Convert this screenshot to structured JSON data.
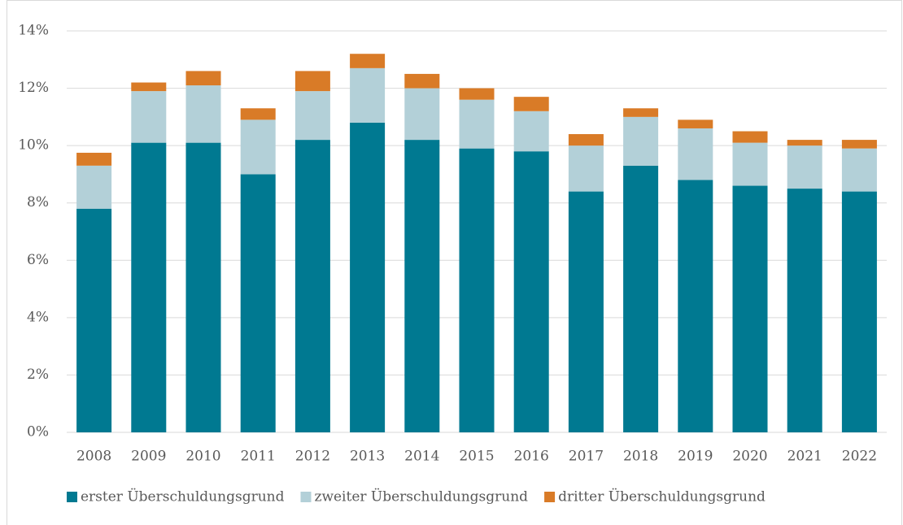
{
  "chart_data": {
    "type": "stacked_bar",
    "categories": [
      "2008",
      "2009",
      "2010",
      "2011",
      "2012",
      "2013",
      "2014",
      "2015",
      "2016",
      "2017",
      "2018",
      "2019",
      "2020",
      "2021",
      "2022"
    ],
    "series": [
      {
        "name": "erster Überschuldungsgrund",
        "color": "#007991",
        "values": [
          7.8,
          10.1,
          10.1,
          9.0,
          10.2,
          10.8,
          10.2,
          9.9,
          9.8,
          8.4,
          9.3,
          8.8,
          8.6,
          8.5,
          8.4
        ]
      },
      {
        "name": "zweiter Überschuldungsgrund",
        "color": "#b3d0d8",
        "values": [
          1.5,
          1.8,
          2.0,
          1.9,
          1.7,
          1.9,
          1.8,
          1.7,
          1.4,
          1.6,
          1.7,
          1.8,
          1.5,
          1.5,
          1.5
        ]
      },
      {
        "name": "dritter Überschuldungsgrund",
        "color": "#d97b27",
        "values": [
          0.45,
          0.3,
          0.5,
          0.4,
          0.7,
          0.5,
          0.5,
          0.4,
          0.5,
          0.4,
          0.3,
          0.3,
          0.4,
          0.2,
          0.3
        ]
      }
    ],
    "ylim": [
      0,
      14
    ],
    "yticks": [
      {
        "value": 0,
        "label": "0%"
      },
      {
        "value": 2,
        "label": "2%"
      },
      {
        "value": 4,
        "label": "4%"
      },
      {
        "value": 6,
        "label": "6%"
      },
      {
        "value": 8,
        "label": "8%"
      },
      {
        "value": 10,
        "label": "10%"
      },
      {
        "value": 12,
        "label": "12%"
      },
      {
        "value": 14,
        "label": "14%"
      }
    ],
    "grid": true,
    "legend": "bottom"
  }
}
